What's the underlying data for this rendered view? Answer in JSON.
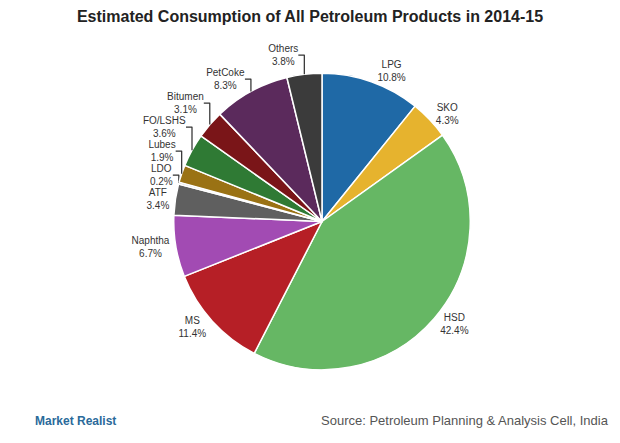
{
  "chart_data": {
    "type": "pie",
    "title": "Estimated Consumption of All Petroleum Products in 2014-15",
    "categories": [
      "LPG",
      "SKO",
      "HSD",
      "MS",
      "Naphtha",
      "ATF",
      "LDO",
      "Lubes",
      "FO/LSHS",
      "Bitumen",
      "PetCoke",
      "Others"
    ],
    "values": [
      10.8,
      4.3,
      42.4,
      11.4,
      6.7,
      3.4,
      0.2,
      1.9,
      3.6,
      3.1,
      8.3,
      3.8
    ],
    "value_labels": [
      "10.8%",
      "4.3%",
      "42.4%",
      "11.4%",
      "6.7%",
      "3.4%",
      "0.2%",
      "1.9%",
      "3.6%",
      "3.1%",
      "8.3%",
      "3.8%"
    ],
    "colors": [
      "#1f69a6",
      "#e6b32e",
      "#66b764",
      "#b61f26",
      "#a24bb3",
      "#5f5f5f",
      "#cfcfcf",
      "#9a7214",
      "#2f7a34",
      "#7a1518",
      "#5b2a5c",
      "#3b3b3b"
    ],
    "data_labels": true,
    "source": "Source: Petroleum Planning & Analysis Cell, India",
    "branding": "Market Realist"
  }
}
